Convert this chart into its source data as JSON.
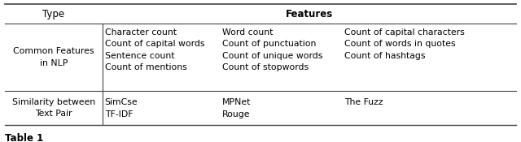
{
  "title": "Table 1",
  "col1_rows": [
    "Common Features\nin NLP",
    "Similarity between\nText Pair"
  ],
  "features_col2": [
    "Character count\nCount of capital words\nSentence count\nCount of mentions",
    "SimCse\nTF-IDF"
  ],
  "features_col3": [
    "Word count\nCount of punctuation\nCount of unique words\nCount of stopwords",
    "MPNet\nRouge"
  ],
  "features_col4": [
    "Count of capital characters\nCount of words in quotes\nCount of hashtags",
    "The Fuzz"
  ],
  "bg_color": "#ffffff",
  "text_color": "#000000",
  "line_color": "#444444",
  "font_size": 7.8,
  "title_font_size": 8.5,
  "header_font_size": 8.5
}
